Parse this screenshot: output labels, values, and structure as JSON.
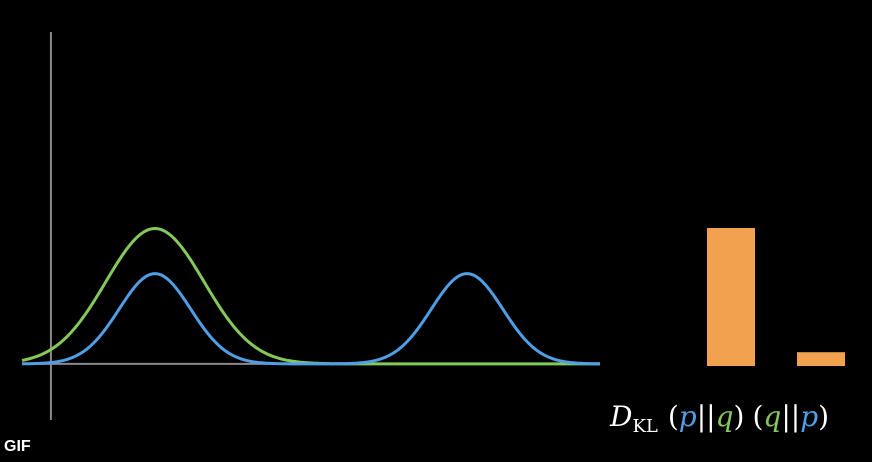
{
  "badge": {
    "label": "GIF"
  },
  "colors": {
    "background": "#000000",
    "axis": "#8a8a8a",
    "p": "#4f9ee6",
    "q": "#85c95a",
    "bar": "#f2a24f",
    "text": "#ffffff"
  },
  "formula": {
    "symbol": "D",
    "subscript": "KL",
    "lparen": "(",
    "rparen": ")",
    "sep": "||",
    "p": "p",
    "q": "q"
  },
  "chart_data": [
    {
      "type": "line",
      "grid": false,
      "legend": "none",
      "xlim": [
        -0.5,
        9.5
      ],
      "ylim": [
        -0.4,
        3.7
      ],
      "series": [
        {
          "key": "p",
          "color": "#4f9ee6",
          "components": [
            {
              "mu": 1.8,
              "sigma": 0.62,
              "amp": 1.0
            },
            {
              "mu": 7.2,
              "sigma": 0.62,
              "amp": 1.0
            }
          ]
        },
        {
          "key": "q",
          "color": "#85c95a",
          "components": [
            {
              "mu": 1.8,
              "sigma": 0.85,
              "amp": 1.5
            }
          ]
        }
      ]
    },
    {
      "type": "bar",
      "categories": [
        "(p||q)",
        "(q||p)"
      ],
      "values": [
        10.0,
        1.0
      ],
      "ylim": [
        0,
        10
      ]
    }
  ]
}
